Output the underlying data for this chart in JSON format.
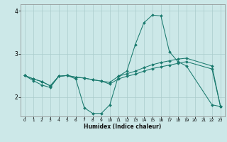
{
  "xlabel": "Humidex (Indice chaleur)",
  "xlim": [
    -0.5,
    23.5
  ],
  "ylim": [
    1.55,
    4.15
  ],
  "yticks": [
    2,
    3,
    4
  ],
  "xticks": [
    0,
    1,
    2,
    3,
    4,
    5,
    6,
    7,
    8,
    9,
    10,
    11,
    12,
    13,
    14,
    15,
    16,
    17,
    18,
    19,
    20,
    21,
    22,
    23
  ],
  "background_color": "#cce8e8",
  "grid_color": "#aacccc",
  "line_color": "#1a7a6e",
  "lines": [
    {
      "x": [
        0,
        1,
        2,
        3,
        4,
        5,
        6,
        7,
        8,
        9,
        10,
        11,
        12,
        13,
        14,
        15,
        16,
        17,
        18,
        19,
        22,
        23
      ],
      "y": [
        2.5,
        2.38,
        2.28,
        2.22,
        2.48,
        2.5,
        2.42,
        1.75,
        1.62,
        1.62,
        1.82,
        2.48,
        2.6,
        3.22,
        3.72,
        3.9,
        3.88,
        3.05,
        2.82,
        2.72,
        1.82,
        1.78
      ]
    },
    {
      "x": [
        0,
        1,
        2,
        3,
        4,
        5,
        6,
        7,
        8,
        9,
        10,
        11,
        12,
        13,
        14,
        15,
        16,
        17,
        18,
        19,
        22,
        23
      ],
      "y": [
        2.5,
        2.42,
        2.36,
        2.26,
        2.48,
        2.5,
        2.46,
        2.44,
        2.4,
        2.37,
        2.34,
        2.48,
        2.54,
        2.6,
        2.68,
        2.75,
        2.8,
        2.84,
        2.88,
        2.9,
        2.72,
        1.78
      ]
    },
    {
      "x": [
        0,
        1,
        2,
        3,
        4,
        5,
        6,
        7,
        8,
        9,
        10,
        11,
        12,
        13,
        14,
        15,
        16,
        17,
        18,
        19,
        22,
        23
      ],
      "y": [
        2.5,
        2.42,
        2.36,
        2.26,
        2.48,
        2.5,
        2.46,
        2.44,
        2.4,
        2.37,
        2.3,
        2.42,
        2.48,
        2.53,
        2.6,
        2.66,
        2.7,
        2.74,
        2.78,
        2.82,
        2.65,
        1.78
      ]
    }
  ]
}
